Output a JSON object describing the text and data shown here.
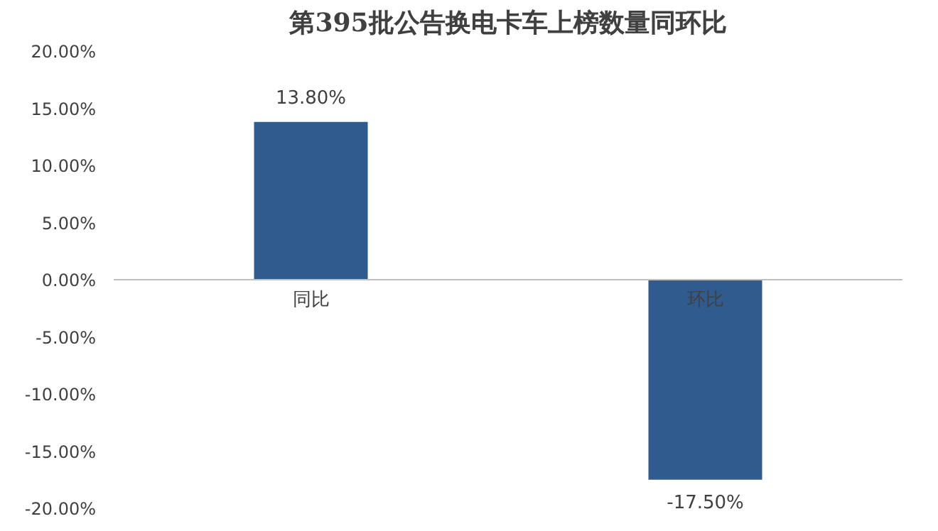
{
  "chart_data": {
    "type": "bar",
    "title": "第395批公告换电卡车上榜数量同环比",
    "categories": [
      "同比",
      "环比"
    ],
    "values": [
      13.8,
      -17.5
    ],
    "value_labels": [
      "13.80%",
      "-17.50%"
    ],
    "color": "#2f5b8f",
    "ylim": [
      -20,
      20
    ],
    "yticks": [
      {
        "value": -20,
        "label": "-20.00%"
      },
      {
        "value": -15,
        "label": "-15.00%"
      },
      {
        "value": -10,
        "label": "-10.00%"
      },
      {
        "value": -5,
        "label": "-5.00%"
      },
      {
        "value": 0,
        "label": "0.00%"
      },
      {
        "value": 5,
        "label": "5.00%"
      },
      {
        "value": 10,
        "label": "10.00%"
      },
      {
        "value": 15,
        "label": "15.00%"
      },
      {
        "value": 20,
        "label": "20.00%"
      }
    ],
    "grid": false
  }
}
